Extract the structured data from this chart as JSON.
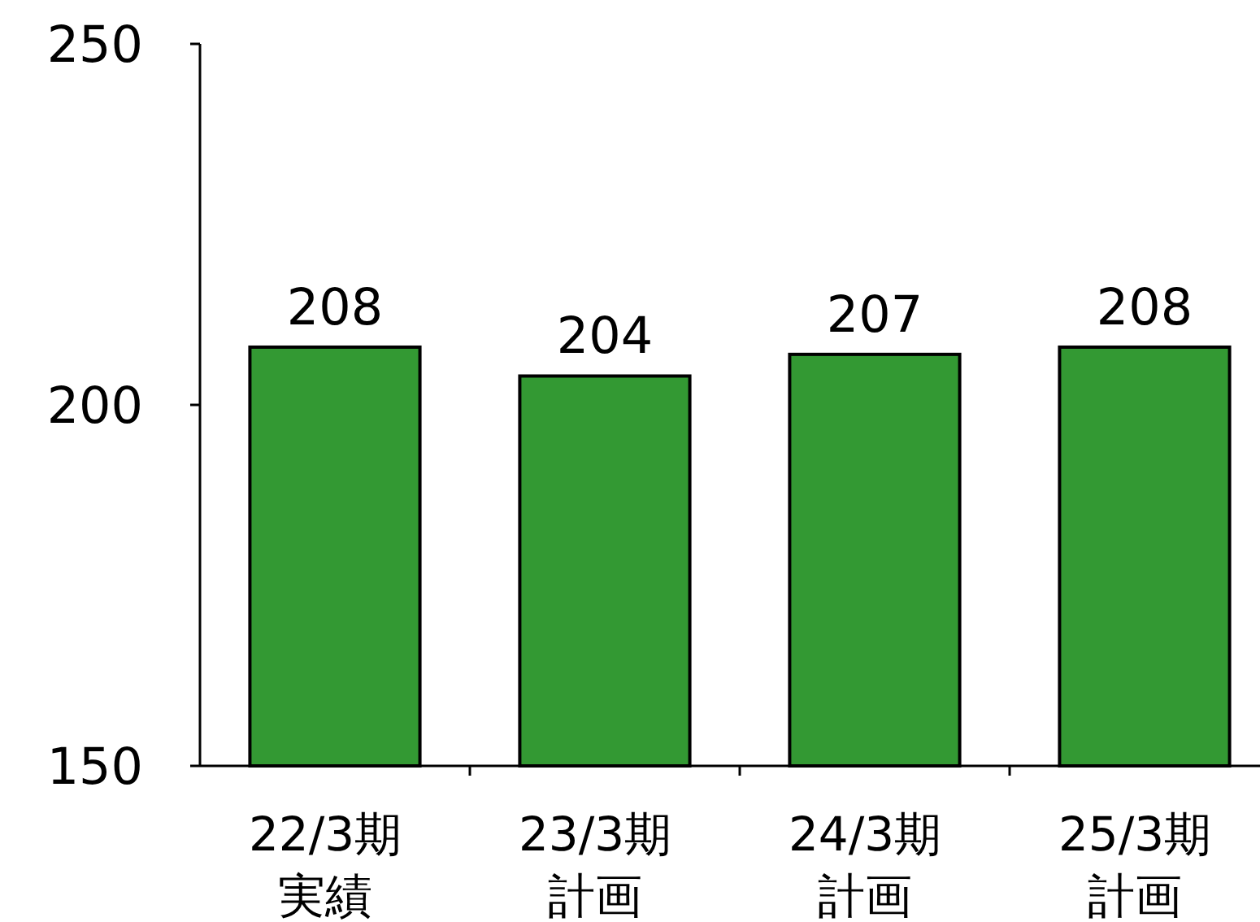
{
  "chart_data": {
    "type": "bar",
    "categories": [
      "22/3期実績",
      "23/3期計画",
      "24/3期計画",
      "25/3期計画"
    ],
    "values": [
      208,
      204,
      207,
      208
    ],
    "color": "#339933",
    "ylim": [
      150,
      250
    ],
    "yticks": [
      150,
      200,
      250
    ],
    "data_labels": true,
    "grid": false
  }
}
